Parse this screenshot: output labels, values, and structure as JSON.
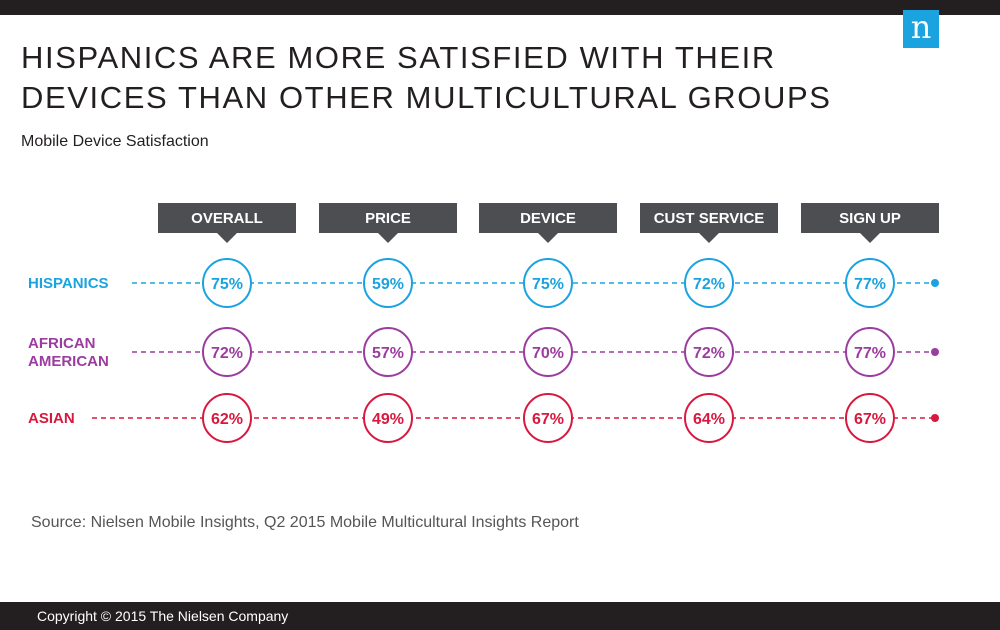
{
  "title": "HISPANICS ARE MORE SATISFIED WITH THEIR DEVICES THAN OTHER MULTICULTURAL GROUPS",
  "subtitle": "Mobile Device Satisfaction",
  "logo": "n",
  "source": "Source: Nielsen Mobile Insights, Q2 2015 Mobile Multicultural Insights Report",
  "copyright": "Copyright © 2015 The Nielsen Company",
  "colors": {
    "header_box": "#4d4e52",
    "logo_bg": "#1ba3e0",
    "dark_bar": "#231f20"
  },
  "chart_data": {
    "type": "table",
    "categories": [
      "OVERALL",
      "PRICE",
      "DEVICE",
      "CUST SERVICE",
      "SIGN UP"
    ],
    "series": [
      {
        "name": "HISPANICS",
        "label_lines": [
          "HISPANICS"
        ],
        "color": "#1ba3e0",
        "values": [
          75,
          59,
          75,
          72,
          77
        ]
      },
      {
        "name": "AFRICAN AMERICAN",
        "label_lines": [
          "AFRICAN",
          "AMERICAN"
        ],
        "color": "#9b3c9f",
        "values": [
          72,
          57,
          70,
          72,
          77
        ]
      },
      {
        "name": "ASIAN",
        "label_lines": [
          "ASIAN"
        ],
        "color": "#d7193f",
        "values": [
          62,
          49,
          67,
          64,
          67
        ]
      }
    ],
    "unit": "%"
  }
}
